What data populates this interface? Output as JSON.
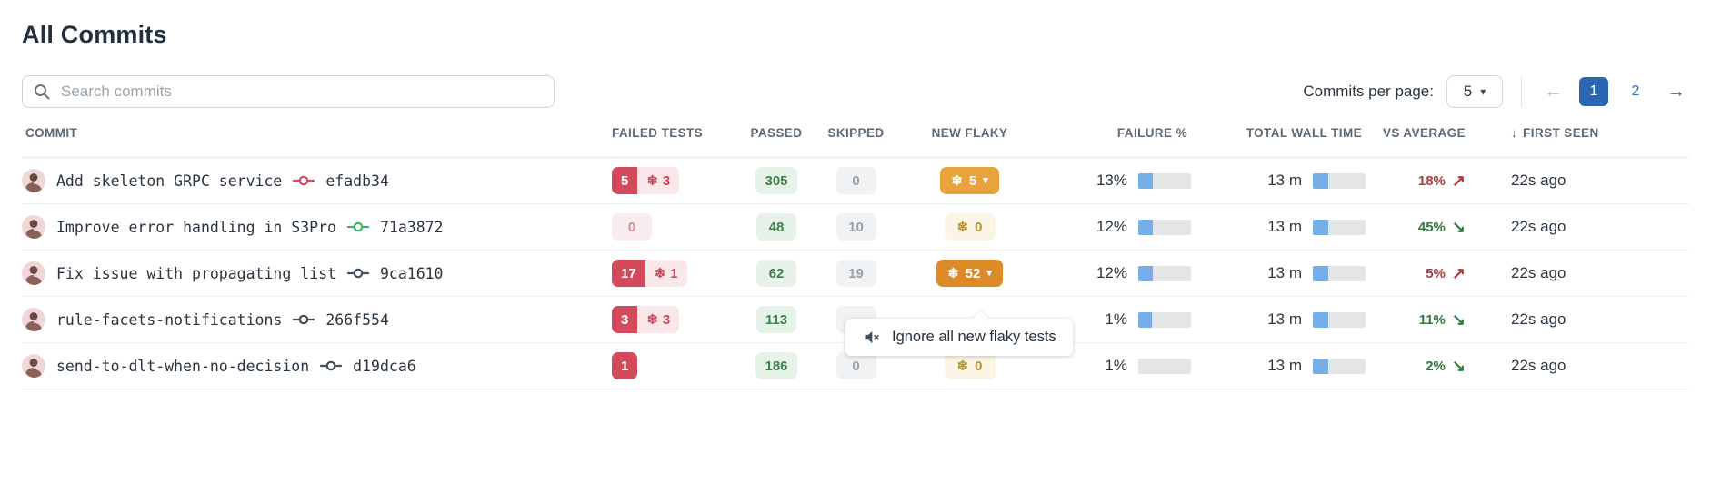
{
  "page": {
    "title": "All Commits"
  },
  "search": {
    "placeholder": "Search commits"
  },
  "toolbar": {
    "per_page_label": "Commits per page:",
    "per_page_value": "5"
  },
  "pagination": {
    "prev_icon": "←",
    "next_icon": "→",
    "pages": [
      {
        "label": "1",
        "active": true
      },
      {
        "label": "2",
        "active": false
      }
    ]
  },
  "icons": {
    "snowflake": "❄",
    "caret_down": "▾",
    "trend_up": "↗",
    "trend_down": "↘",
    "sort_down": "↓",
    "search": "search-icon",
    "mute": "mute-speaker-icon"
  },
  "colors": {
    "accent_blue": "#2a66b2",
    "failed_red": "#d5495c",
    "failed_red_light": "#f9e7e9",
    "passed_green_bg": "#e7f3e9",
    "passed_green_text": "#39824a",
    "skipped_gray_bg": "#f1f2f3",
    "flaky_amber": "#e8a33c",
    "flaky_amber_dark": "#dc8b28",
    "flaky_cream_bg": "#faf5e4",
    "bar_fill_blue": "#76aee7",
    "bar_track_gray": "#e3e5e7",
    "trend_up_red": "#a93c3e",
    "trend_down_green": "#2e7d3e"
  },
  "table": {
    "headers": [
      {
        "label": "COMMIT"
      },
      {
        "label": "FAILED TESTS"
      },
      {
        "label": "PASSED"
      },
      {
        "label": "SKIPPED"
      },
      {
        "label": "NEW FLAKY"
      },
      {
        "label": "FAILURE %"
      },
      {
        "label": "TOTAL WALL TIME"
      },
      {
        "label": "VS AVERAGE"
      },
      {
        "label": "FIRST SEEN",
        "sort_icon": "↓"
      }
    ],
    "rows": [
      {
        "message": "Add skeleton GRPC service",
        "hash": "efadb34",
        "commit_icon_color": "#d04a60",
        "failed": "5",
        "failed_style": "solid",
        "failed_flaky": "3",
        "passed": "305",
        "skipped": "0",
        "flaky_count": "5",
        "flaky_style": "solid",
        "flaky_dropdown": true,
        "failure_pct": "13%",
        "failure_bar_fill_pct": 28,
        "wall_time": "13 m",
        "wall_bar_fill_pct": 30,
        "vs_average": "18%",
        "vs_trend": "up",
        "first_seen": "22s ago"
      },
      {
        "message": "Improve error handling in S3Pro",
        "hash": "71a3872",
        "commit_icon_color": "#3cb264",
        "failed": "0",
        "failed_style": "muted",
        "failed_flaky": null,
        "passed": "48",
        "skipped": "10",
        "flaky_count": "0",
        "flaky_style": "muted",
        "flaky_dropdown": false,
        "failure_pct": "12%",
        "failure_bar_fill_pct": 28,
        "wall_time": "13 m",
        "wall_bar_fill_pct": 30,
        "vs_average": "45%",
        "vs_trend": "down",
        "first_seen": "22s ago"
      },
      {
        "message": "Fix issue with propagating list",
        "hash": "9ca1610",
        "commit_icon_color": "#434e59",
        "failed": "17",
        "failed_style": "solid",
        "failed_flaky": "1",
        "passed": "62",
        "skipped": "19",
        "flaky_count": "52",
        "flaky_style": "solid-dark",
        "flaky_dropdown": true,
        "failure_pct": "12%",
        "failure_bar_fill_pct": 28,
        "wall_time": "13 m",
        "wall_bar_fill_pct": 30,
        "vs_average": "5%",
        "vs_trend": "up",
        "first_seen": "22s ago"
      },
      {
        "message": "rule-facets-notifications",
        "hash": "266f554",
        "commit_icon_color": "#434e59",
        "failed": "3",
        "failed_style": "solid",
        "failed_flaky": "3",
        "passed": "113",
        "skipped": "",
        "flaky_count": null,
        "flaky_style": null,
        "flaky_dropdown": false,
        "failure_pct": "1%",
        "failure_bar_fill_pct": 26,
        "wall_time": "13 m",
        "wall_bar_fill_pct": 30,
        "vs_average": "11%",
        "vs_trend": "down",
        "first_seen": "22s ago"
      },
      {
        "message": "send-to-dlt-when-no-decision",
        "hash": "d19dca6",
        "commit_icon_color": "#434e59",
        "failed": "1",
        "failed_style": "solid",
        "failed_flaky": null,
        "passed": "186",
        "skipped": "0",
        "flaky_count": "0",
        "flaky_style": "muted",
        "flaky_dropdown": false,
        "failure_pct": "1%",
        "failure_bar_fill_pct": 0,
        "wall_time": "13 m",
        "wall_bar_fill_pct": 30,
        "vs_average": "2%",
        "vs_trend": "down",
        "first_seen": "22s ago"
      }
    ]
  },
  "tooltip": {
    "label": "Ignore all new flaky tests"
  }
}
